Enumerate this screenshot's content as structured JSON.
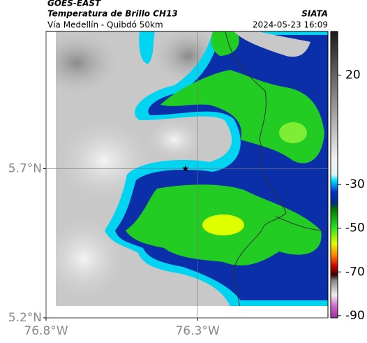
{
  "header": {
    "source": "GOES-EAST",
    "title": "Temperatura de Brillo CH13",
    "credit": "SIATA",
    "subtitle": "Vía Medellín - Quibdó 50km",
    "timestamp": "2024-05-23 16:09"
  },
  "map": {
    "xlim": [
      -76.8,
      -75.87
    ],
    "ylim": [
      5.2,
      6.16
    ],
    "xticks": [
      {
        "value": -76.8,
        "label": "76.8°W"
      },
      {
        "value": -76.3,
        "label": "76.3°W"
      }
    ],
    "yticks": [
      {
        "value": 5.2,
        "label": "5.2°N"
      },
      {
        "value": 5.7,
        "label": "5.7°N"
      }
    ],
    "grid": true,
    "marker": {
      "x": -76.34,
      "y": 5.7
    }
  },
  "colorbar": {
    "lim": [
      -91,
      40
    ],
    "ticks": [
      20,
      -30,
      -50,
      -70,
      -90
    ]
  }
}
